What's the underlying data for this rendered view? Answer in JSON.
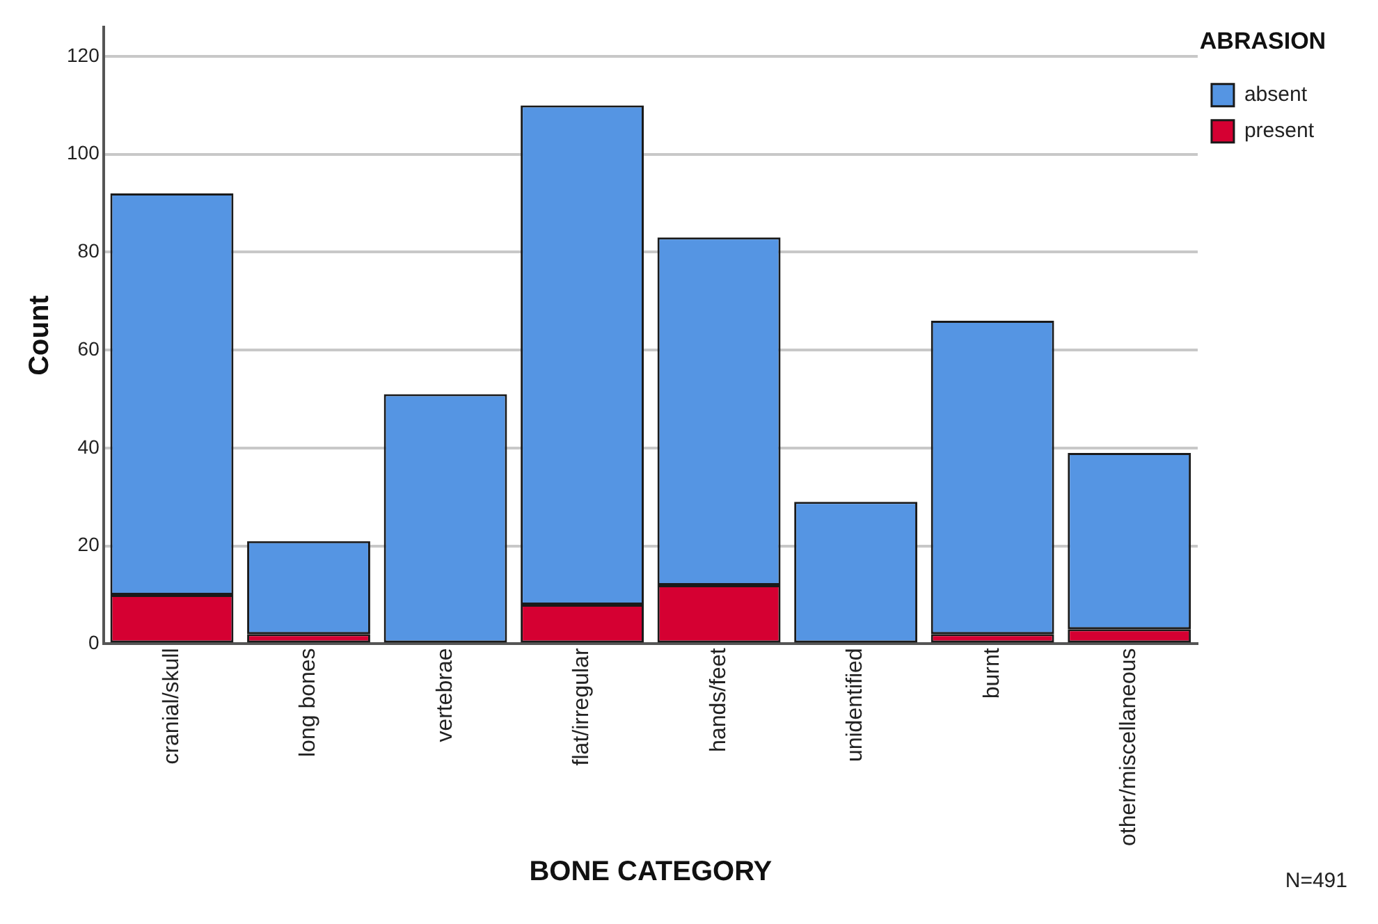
{
  "chart_data": {
    "type": "bar",
    "xlabel": "BONE CATEGORY",
    "ylabel": "Count",
    "legend_title": "ABRASION",
    "categories": [
      "cranial/skull",
      "long bones",
      "vertebrae",
      "flat/irregular",
      "hands/feet",
      "unidentified",
      "burnt",
      "other/miscellaneous"
    ],
    "series": [
      {
        "name": "present",
        "color": "#d50032",
        "values": [
          10,
          2,
          0,
          8,
          12,
          0,
          2,
          3
        ]
      },
      {
        "name": "absent",
        "color": "#5595e3",
        "values": [
          82,
          19,
          51,
          102,
          71,
          29,
          64,
          36
        ]
      }
    ],
    "stacked": true,
    "ylim": [
      0,
      126
    ],
    "yticks": [
      0,
      20,
      40,
      60,
      80,
      100,
      120
    ],
    "grid": "y",
    "legend": "top right",
    "annotations": [
      "N=491"
    ]
  }
}
